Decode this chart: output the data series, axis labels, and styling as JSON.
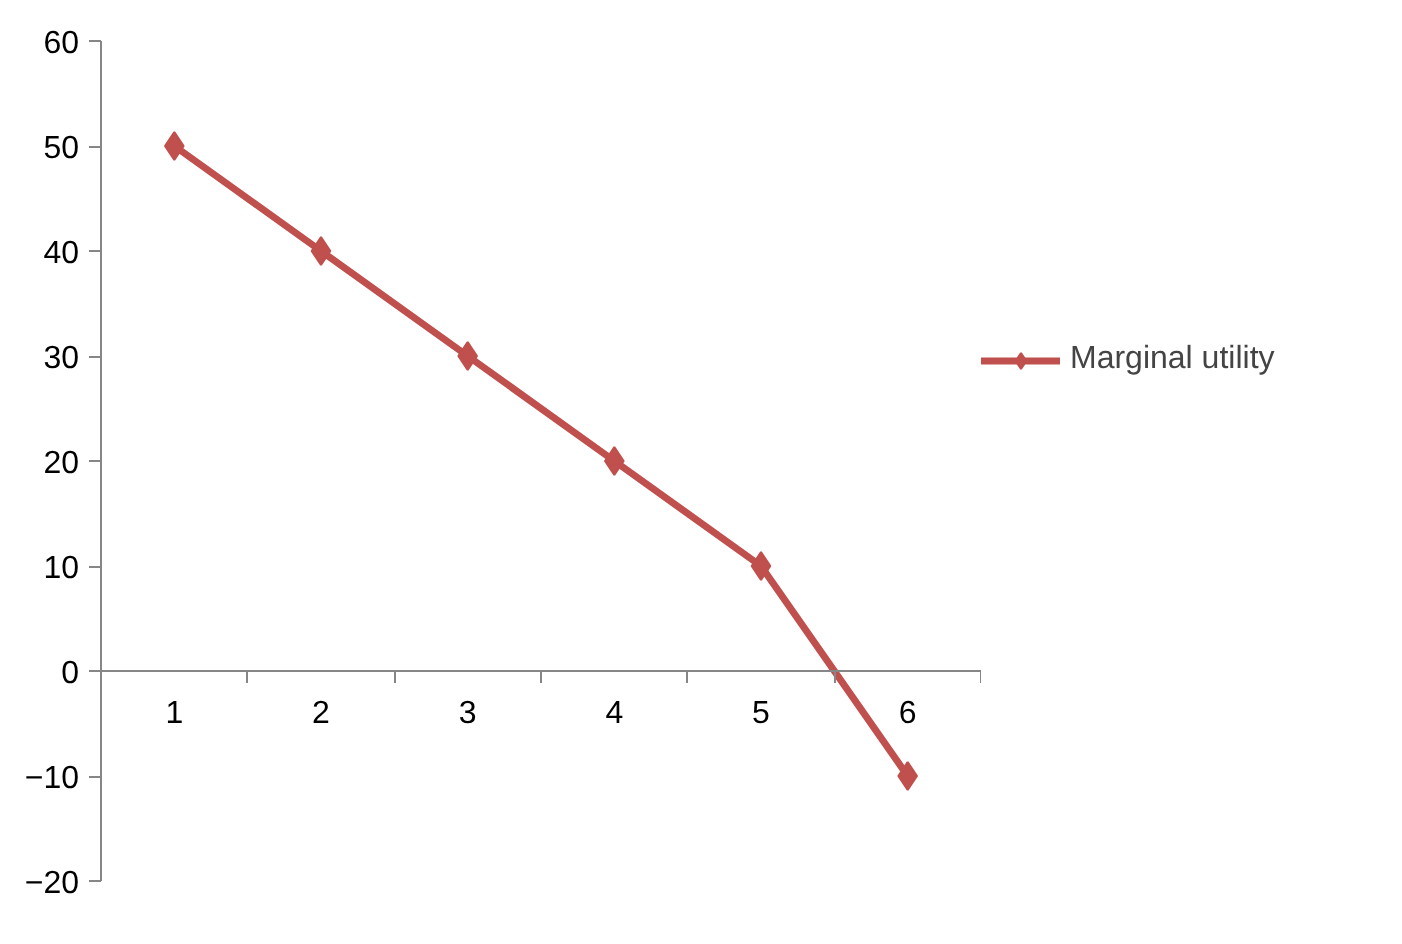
{
  "chart_data": {
    "type": "line",
    "categories": [
      "1",
      "2",
      "3",
      "4",
      "5",
      "6"
    ],
    "series": [
      {
        "name": "Marginal utility",
        "color": "#c0504d",
        "values": [
          50,
          40,
          30,
          20,
          10,
          -10
        ]
      }
    ],
    "ylim": [
      -20,
      60
    ],
    "yticks": [
      -20,
      -10,
      0,
      10,
      20,
      30,
      40,
      50,
      60
    ],
    "marker": "diamond",
    "line_style": "solid",
    "legend": "right",
    "grid": false
  }
}
